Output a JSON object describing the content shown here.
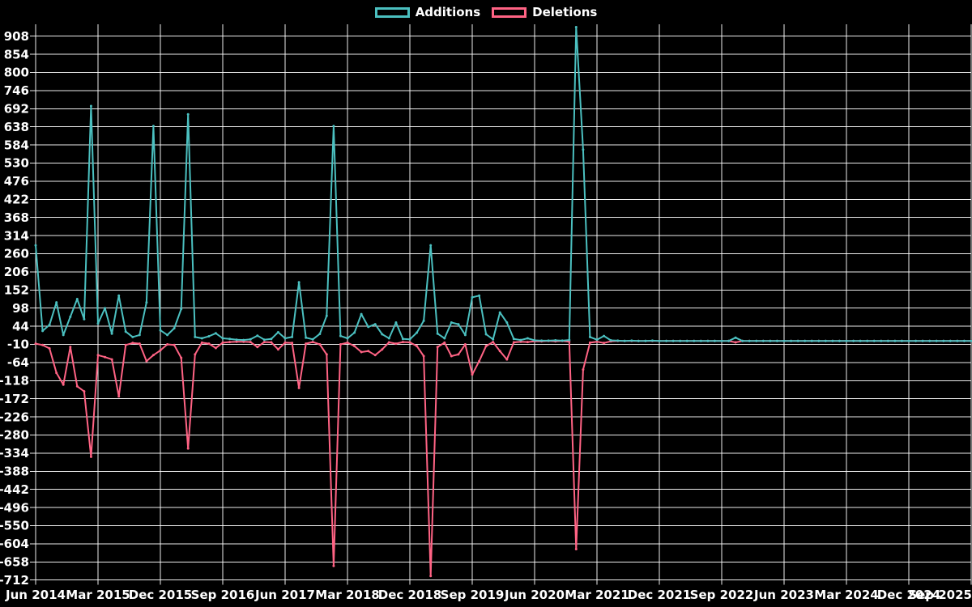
{
  "legend": {
    "items": [
      {
        "id": "additions",
        "label": "Additions",
        "color": "#4bc0c0"
      },
      {
        "id": "deletions",
        "label": "Deletions",
        "color": "#ff6384"
      }
    ]
  },
  "colors": {
    "background": "#000000",
    "grid": "#ffffff",
    "text": "#ffffff",
    "additions": "#4bc0c0",
    "deletions": "#ff6384"
  },
  "chart_data": {
    "type": "line",
    "title": "",
    "xlabel": "",
    "ylabel": "",
    "x_start": "Jun 2014",
    "x_end": "Sep 2025",
    "x_interval": "monthly",
    "x_tick_labels": [
      "Jun 2014",
      "Mar 2015",
      "Dec 2015",
      "Sep 2016",
      "Jun 2017",
      "Mar 2018",
      "Dec 2018",
      "Sep 2019",
      "Jun 2020",
      "Mar 2021",
      "Dec 2021",
      "Sep 2022",
      "Jun 2023",
      "Mar 2024",
      "Dec 2024",
      "Sep 2025"
    ],
    "y_ticks": [
      908,
      854,
      800,
      746,
      692,
      638,
      584,
      530,
      476,
      422,
      368,
      314,
      260,
      206,
      152,
      98,
      44,
      -10,
      -64,
      -118,
      -172,
      -226,
      -280,
      -334,
      -388,
      -442,
      -496,
      -550,
      -604,
      -658,
      -712
    ],
    "ylim": [
      -745,
      943
    ],
    "grid": true,
    "legend_position": "top-center",
    "series": [
      {
        "name": "Additions",
        "color": "#4bc0c0",
        "values": [
          285,
          30,
          48,
          115,
          18,
          72,
          125,
          65,
          700,
          52,
          98,
          22,
          135,
          28,
          12,
          18,
          115,
          640,
          32,
          18,
          38,
          95,
          675,
          12,
          8,
          14,
          23,
          8,
          6,
          4,
          3,
          5,
          16,
          4,
          6,
          26,
          8,
          12,
          175,
          10,
          5,
          21,
          75,
          640,
          15,
          8,
          25,
          80,
          42,
          50,
          20,
          8,
          55,
          6,
          5,
          25,
          60,
          285,
          22,
          8,
          55,
          50,
          18,
          130,
          135,
          20,
          5,
          85,
          55,
          6,
          3,
          8,
          2,
          1,
          1,
          2,
          1,
          3,
          935,
          570,
          12,
          4,
          15,
          2,
          1,
          0,
          1,
          0,
          0,
          1,
          0,
          0,
          0,
          0,
          0,
          0,
          0,
          0,
          0,
          0,
          0,
          10,
          0,
          0,
          0,
          0,
          0,
          0,
          0,
          0,
          0,
          0,
          0,
          0,
          0,
          0,
          0,
          0,
          0,
          0,
          0,
          0,
          0,
          0,
          0,
          0,
          0,
          0,
          0,
          0,
          0,
          0,
          0,
          0,
          0,
          0
        ]
      },
      {
        "name": "Deletions",
        "color": "#ff6384",
        "values": [
          -8,
          -12,
          -22,
          -95,
          -130,
          -18,
          -135,
          -150,
          -345,
          -42,
          -48,
          -55,
          -165,
          -12,
          -6,
          -8,
          -60,
          -42,
          -28,
          -10,
          -12,
          -50,
          -320,
          -40,
          -5,
          -8,
          -21,
          -5,
          -3,
          -2,
          -2,
          -3,
          -18,
          -3,
          -4,
          -25,
          -5,
          -6,
          -140,
          -8,
          -3,
          -10,
          -40,
          -670,
          -10,
          -5,
          -15,
          -33,
          -30,
          -42,
          -25,
          -4,
          -8,
          -3,
          -4,
          -15,
          -45,
          -700,
          -18,
          -5,
          -45,
          -40,
          -10,
          -100,
          -60,
          -15,
          -3,
          -30,
          -55,
          -4,
          -2,
          -3,
          -1,
          -1,
          0,
          -1,
          0,
          -2,
          -620,
          -85,
          -5,
          -2,
          -6,
          -1,
          0,
          0,
          0,
          0,
          0,
          0,
          0,
          0,
          0,
          0,
          0,
          0,
          0,
          0,
          0,
          0,
          0,
          -4,
          0,
          0,
          0,
          0,
          0,
          0,
          0,
          0,
          0,
          0,
          0,
          0,
          0,
          0,
          0,
          0,
          0,
          0,
          0,
          0,
          0,
          0,
          0,
          0,
          0,
          0,
          0,
          0,
          0,
          0,
          0,
          0,
          0,
          0
        ]
      }
    ]
  }
}
